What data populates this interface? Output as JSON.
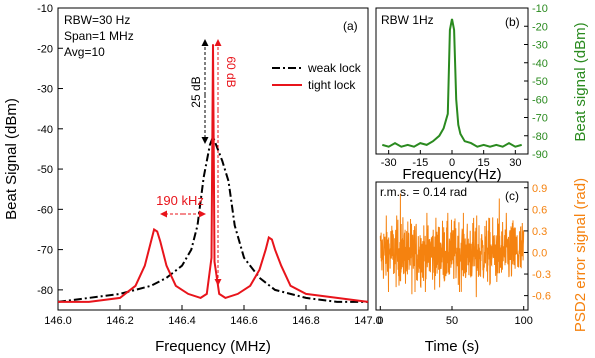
{
  "chart_data": [
    {
      "panel": "(a)",
      "type": "line",
      "xlabel": "Frequency (MHz)",
      "ylabel": "Beat Signal (dBm)",
      "xlim": [
        146.0,
        147.0
      ],
      "ylim": [
        -85,
        -10
      ],
      "x_ticks": [
        "146.0",
        "146.2",
        "146.4",
        "146.6",
        "146.8",
        "147.0"
      ],
      "y_ticks": [
        "-10",
        "-20",
        "-30",
        "-40",
        "-50",
        "-60",
        "-70",
        "-80"
      ],
      "info": [
        "RBW=30 Hz",
        "Span=1 MHz",
        "Avg=10"
      ],
      "legend_position": "right",
      "annotations": {
        "a25": "25 dB",
        "a60": "60 dB",
        "a190": "190 kHz"
      },
      "series": [
        {
          "name": "weak lock",
          "color": "#000000",
          "style": "dashdot",
          "x": [
            146.0,
            146.1,
            146.2,
            146.3,
            146.35,
            146.4,
            146.43,
            146.45,
            146.47,
            146.49,
            146.5,
            146.51,
            146.53,
            146.55,
            146.57,
            146.6,
            146.65,
            146.7,
            146.8,
            146.9,
            147.0
          ],
          "y": [
            -83,
            -82,
            -81,
            -79,
            -77,
            -74,
            -70,
            -64,
            -52,
            -44,
            -42,
            -44,
            -48,
            -53,
            -64,
            -72,
            -77,
            -80,
            -82,
            -83,
            -83
          ]
        },
        {
          "name": "tight lock",
          "color": "#e8141b",
          "style": "solid",
          "x": [
            146.0,
            146.1,
            146.2,
            146.25,
            146.28,
            146.3,
            146.31,
            146.32,
            146.33,
            146.35,
            146.38,
            146.42,
            146.46,
            146.48,
            146.495,
            146.5,
            146.505,
            146.52,
            146.54,
            146.58,
            146.62,
            146.65,
            146.67,
            146.68,
            146.69,
            146.7,
            146.72,
            146.75,
            146.8,
            146.9,
            147.0
          ],
          "y": [
            -83,
            -83,
            -82,
            -79,
            -74,
            -68,
            -65,
            -65.5,
            -68,
            -74,
            -79,
            -81,
            -82,
            -81,
            -72,
            -19,
            -73,
            -81,
            -82,
            -81,
            -79,
            -75,
            -70,
            -67,
            -67.5,
            -70,
            -74,
            -79,
            -81,
            -82,
            -83
          ]
        }
      ]
    },
    {
      "panel": "(b)",
      "type": "line",
      "label": "RBW 1Hz",
      "xlabel": "Frequency(Hz)",
      "ylabel": "Beat signal (dBm)",
      "xlim": [
        -36,
        36
      ],
      "ylim": [
        -90,
        -10
      ],
      "x_ticks": [
        "-30",
        "-15",
        "0",
        "15",
        "30"
      ],
      "y_ticks": [
        "-10",
        "-20",
        "-30",
        "-40",
        "-50",
        "-60",
        "-70",
        "-80",
        "-90"
      ],
      "series": [
        {
          "color": "#2a8a1f",
          "x": [
            -33,
            -30,
            -27,
            -24,
            -21,
            -18,
            -15,
            -12,
            -9,
            -6,
            -4,
            -2,
            -1,
            0,
            1,
            2,
            3,
            4,
            6,
            9,
            12,
            15,
            18,
            21,
            24,
            27,
            30,
            33
          ],
          "y": [
            -85,
            -86,
            -84,
            -86,
            -85,
            -86,
            -84,
            -85,
            -83,
            -80,
            -76,
            -68,
            -22,
            -16,
            -22,
            -60,
            -74,
            -79,
            -83,
            -84,
            -86,
            -85,
            -86,
            -85,
            -86,
            -84,
            -86,
            -85
          ]
        }
      ]
    },
    {
      "panel": "(c)",
      "type": "line",
      "label": "r.m.s. = 0.14 rad",
      "xlabel": "Time (s)",
      "ylabel": "PSD2 error signal (rad)",
      "xlim": [
        -3,
        103
      ],
      "ylim": [
        -0.8,
        0.98
      ],
      "x_ticks": [
        "0",
        "50",
        "100"
      ],
      "y_ticks": [
        "0.9",
        "0.6",
        "0.3",
        "0.0",
        "-0.3",
        "-0.6"
      ],
      "series": [
        {
          "color": "#f5820f",
          "rms": 0.14,
          "x_range": [
            0,
            100
          ],
          "spikes": [
            {
              "x": 14,
              "y": 0.82
            },
            {
              "x": 22,
              "y": -0.58
            },
            {
              "x": 67,
              "y": -0.62
            },
            {
              "x": 83,
              "y": 0.75
            }
          ]
        }
      ]
    }
  ]
}
